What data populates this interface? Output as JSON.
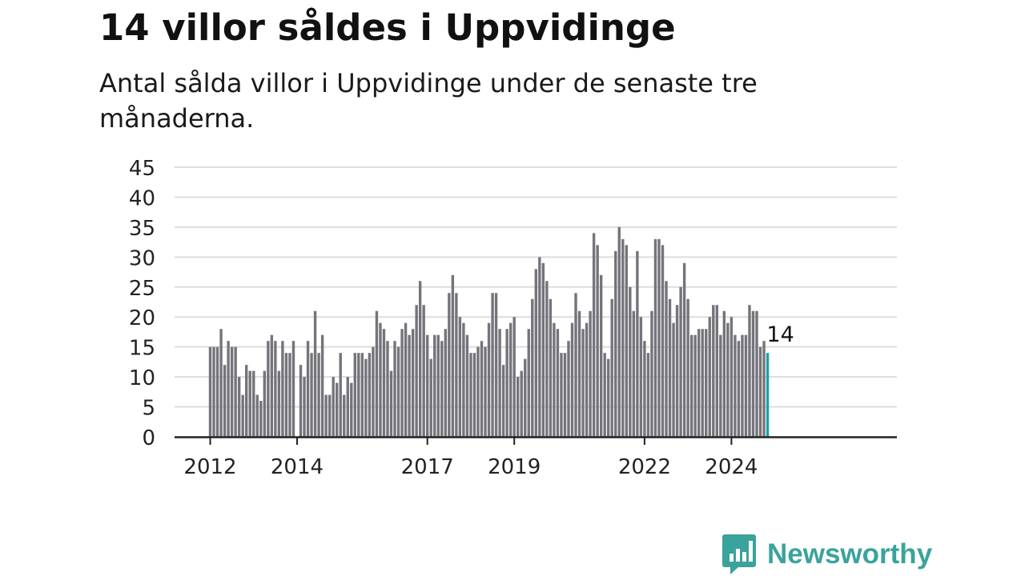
{
  "title": "14 villor såldes i Uppvidinge",
  "subtitle": "Antal sålda villor i Uppvidinge under de senaste tre månaderna.",
  "brand": {
    "name": "Newsworthy",
    "logo_icon": "newsworthy-bar-chart-logo"
  },
  "colors": {
    "bars": "#75747b",
    "highlight": "#17a2a6",
    "grid": "#dddddd",
    "axis": "#222222"
  },
  "chart_data": {
    "type": "bar",
    "x_start": "2012-01",
    "x_tick_labels": [
      "2012",
      "2014",
      "2017",
      "2019",
      "2022",
      "2024"
    ],
    "y_ticks": [
      0,
      5,
      10,
      15,
      20,
      25,
      30,
      35,
      40,
      45
    ],
    "ylim": [
      0,
      45
    ],
    "grid": true,
    "annotation": "14",
    "values": [
      15,
      15,
      15,
      18,
      12,
      16,
      15,
      15,
      10,
      7,
      12,
      11,
      11,
      7,
      6,
      11,
      16,
      17,
      16,
      11,
      16,
      14,
      14,
      16,
      0,
      12,
      10,
      16,
      14,
      21,
      14,
      17,
      7,
      7,
      10,
      9,
      14,
      7,
      10,
      9,
      14,
      14,
      14,
      13,
      14,
      15,
      21,
      19,
      18,
      16,
      11,
      16,
      15,
      18,
      19,
      17,
      18,
      22,
      26,
      22,
      17,
      13,
      17,
      17,
      16,
      18,
      24,
      27,
      24,
      20,
      19,
      17,
      14,
      14,
      15,
      16,
      15,
      19,
      24,
      24,
      18,
      12,
      18,
      19,
      20,
      10,
      11,
      13,
      18,
      23,
      28,
      30,
      29,
      26,
      23,
      19,
      18,
      14,
      14,
      16,
      19,
      24,
      21,
      18,
      19,
      21,
      34,
      32,
      27,
      14,
      13,
      23,
      31,
      35,
      33,
      32,
      25,
      21,
      31,
      20,
      16,
      14,
      21,
      33,
      33,
      32,
      26,
      23,
      19,
      22,
      25,
      29,
      23,
      17,
      17,
      18,
      18,
      18,
      20,
      22,
      22,
      17,
      21,
      19,
      20,
      17,
      16,
      17,
      17,
      22,
      21,
      21,
      15,
      16,
      14
    ]
  }
}
